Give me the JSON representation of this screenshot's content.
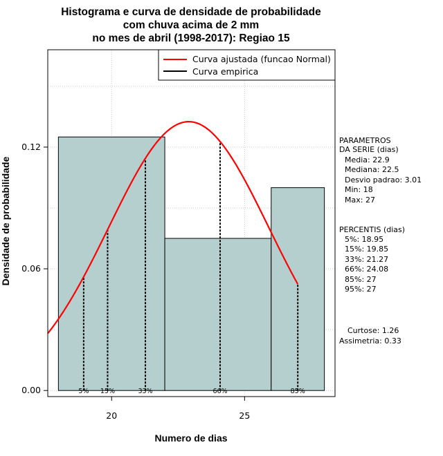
{
  "chart_data": {
    "type": "histogram",
    "title_lines": [
      "Histograma e curva de densidade de probabilidade",
      "com chuva acima de 2 mm",
      "no mes de abril (1998-2017): Regiao 15"
    ],
    "xlabel": "Numero de dias",
    "ylabel": "Densidade de probabilidade",
    "xlim": [
      17.6,
      28.4
    ],
    "ylim": [
      -0.003,
      0.168
    ],
    "x_ticks": [
      20,
      25
    ],
    "y_ticks": [
      0.0,
      0.06,
      0.12
    ],
    "y_tick_labels": [
      "0.00",
      "0.06",
      "0.12"
    ],
    "bins": [
      {
        "x0": 18,
        "x1": 22,
        "density": 0.125
      },
      {
        "x0": 22,
        "x1": 26,
        "density": 0.075
      },
      {
        "x0": 26,
        "x1": 28,
        "density": 0.1
      }
    ],
    "bar_color": "#b5cfcf",
    "normal_curve": {
      "mean": 22.9,
      "sd": 3.01,
      "x_from": 17.6,
      "x_to": 27.0,
      "color": "#ff0000"
    },
    "percentile_lines": [
      {
        "label": "5%",
        "x": 18.95
      },
      {
        "label": "15%",
        "x": 19.85
      },
      {
        "label": "33%",
        "x": 21.27
      },
      {
        "label": "66%",
        "x": 24.08
      },
      {
        "label": "85%",
        "x": 27
      }
    ],
    "grid": true,
    "legend": {
      "position": "top-right",
      "items": [
        {
          "label": "Curva ajustada (funcao Normal)",
          "color": "#ff0000"
        },
        {
          "label": "Curva empirica",
          "color": "#000000"
        }
      ]
    },
    "side_panel": {
      "parametros_title": [
        "PARAMETROS",
        "DA SERIE (dias)"
      ],
      "parametros": [
        "Media: 22.9",
        "Mediana: 22.5",
        "Desvio padrao: 3.01",
        "Min: 18",
        "Max: 27"
      ],
      "percentis_title": "PERCENTIS (dias)",
      "percentis": [
        "5%: 18.95",
        "15%: 19.85",
        "33%: 21.27",
        "66%: 24.08",
        "85%: 27",
        "95%: 27"
      ],
      "stats": [
        "Curtose: 1.26",
        "Assimetria: 0.33"
      ]
    }
  }
}
